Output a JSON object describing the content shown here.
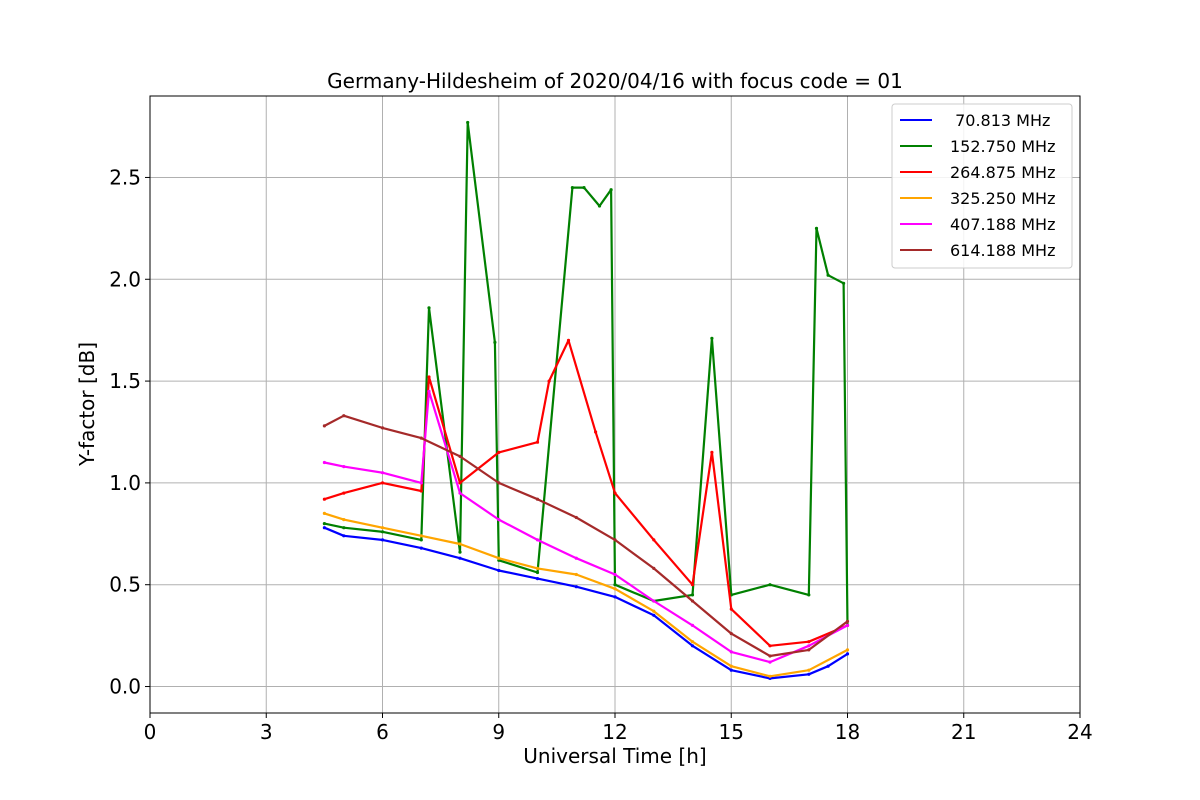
{
  "chart_data": {
    "type": "line",
    "title": "Germany-Hildesheim of 2020/04/16 with focus code = 01",
    "xlabel": "Universal Time [h]",
    "ylabel": "Y-factor [dB]",
    "xlim": [
      0,
      24
    ],
    "ylim": [
      -0.13,
      2.9
    ],
    "x_ticks": [
      0,
      3,
      6,
      9,
      12,
      15,
      18,
      21,
      24
    ],
    "x_tick_labels": [
      "0",
      "3",
      "6",
      "9",
      "12",
      "15",
      "18",
      "21",
      "24"
    ],
    "y_ticks": [
      0.0,
      0.5,
      1.0,
      1.5,
      2.0,
      2.5
    ],
    "y_tick_labels": [
      "0.0",
      "0.5",
      "1.0",
      "1.5",
      "2.0",
      "2.5"
    ],
    "grid": true,
    "legend_position": "top-right",
    "series": [
      {
        "name": " 70.813 MHz",
        "color": "#0000ff",
        "x": [
          4.5,
          5.0,
          6.0,
          7.0,
          8.0,
          9.0,
          10.0,
          11.0,
          12.0,
          13.0,
          14.0,
          15.0,
          16.0,
          17.0,
          17.5,
          18.0
        ],
        "y": [
          0.78,
          0.74,
          0.72,
          0.68,
          0.63,
          0.57,
          0.53,
          0.49,
          0.44,
          0.35,
          0.2,
          0.08,
          0.04,
          0.06,
          0.1,
          0.16
        ]
      },
      {
        "name": "152.750 MHz",
        "color": "#008000",
        "x": [
          4.5,
          5.0,
          6.0,
          7.0,
          7.2,
          8.0,
          8.2,
          8.9,
          9.0,
          10.0,
          10.9,
          11.2,
          11.6,
          11.9,
          12.0,
          13.0,
          14.0,
          14.5,
          15.0,
          16.0,
          17.0,
          17.2,
          17.5,
          17.9,
          18.0
        ],
        "y": [
          0.8,
          0.78,
          0.76,
          0.72,
          1.86,
          0.66,
          2.77,
          1.69,
          0.62,
          0.56,
          2.45,
          2.45,
          2.36,
          2.44,
          0.5,
          0.42,
          0.45,
          1.71,
          0.45,
          0.5,
          0.45,
          2.25,
          2.02,
          1.98,
          0.3
        ]
      },
      {
        "name": "264.875 MHz",
        "color": "#ff0000",
        "x": [
          4.5,
          5.0,
          6.0,
          7.0,
          7.2,
          8.0,
          9.0,
          10.0,
          10.3,
          10.8,
          11.5,
          12.0,
          13.0,
          14.0,
          14.5,
          15.0,
          16.0,
          17.0,
          18.0
        ],
        "y": [
          0.92,
          0.95,
          1.0,
          0.96,
          1.52,
          1.0,
          1.15,
          1.2,
          1.5,
          1.7,
          1.25,
          0.95,
          0.72,
          0.5,
          1.15,
          0.38,
          0.2,
          0.22,
          0.3
        ]
      },
      {
        "name": "325.250 MHz",
        "color": "#ffa500",
        "x": [
          4.5,
          5.0,
          6.0,
          7.0,
          8.0,
          9.0,
          10.0,
          11.0,
          12.0,
          13.0,
          14.0,
          15.0,
          16.0,
          17.0,
          18.0
        ],
        "y": [
          0.85,
          0.82,
          0.78,
          0.74,
          0.7,
          0.63,
          0.58,
          0.55,
          0.48,
          0.37,
          0.22,
          0.1,
          0.05,
          0.08,
          0.18
        ]
      },
      {
        "name": "407.188 MHz",
        "color": "#ff00ff",
        "x": [
          4.5,
          5.0,
          6.0,
          7.0,
          7.2,
          8.0,
          9.0,
          10.0,
          11.0,
          12.0,
          13.0,
          14.0,
          15.0,
          16.0,
          17.0,
          18.0
        ],
        "y": [
          1.1,
          1.08,
          1.05,
          1.0,
          1.45,
          0.95,
          0.82,
          0.72,
          0.63,
          0.55,
          0.42,
          0.3,
          0.17,
          0.12,
          0.2,
          0.3
        ]
      },
      {
        "name": "614.188 MHz",
        "color": "#a52a2a",
        "x": [
          4.5,
          5.0,
          6.0,
          7.0,
          8.0,
          9.0,
          10.0,
          11.0,
          12.0,
          13.0,
          14.0,
          15.0,
          16.0,
          17.0,
          18.0
        ],
        "y": [
          1.28,
          1.33,
          1.27,
          1.22,
          1.13,
          1.0,
          0.92,
          0.83,
          0.72,
          0.58,
          0.42,
          0.26,
          0.15,
          0.18,
          0.32
        ]
      }
    ]
  }
}
